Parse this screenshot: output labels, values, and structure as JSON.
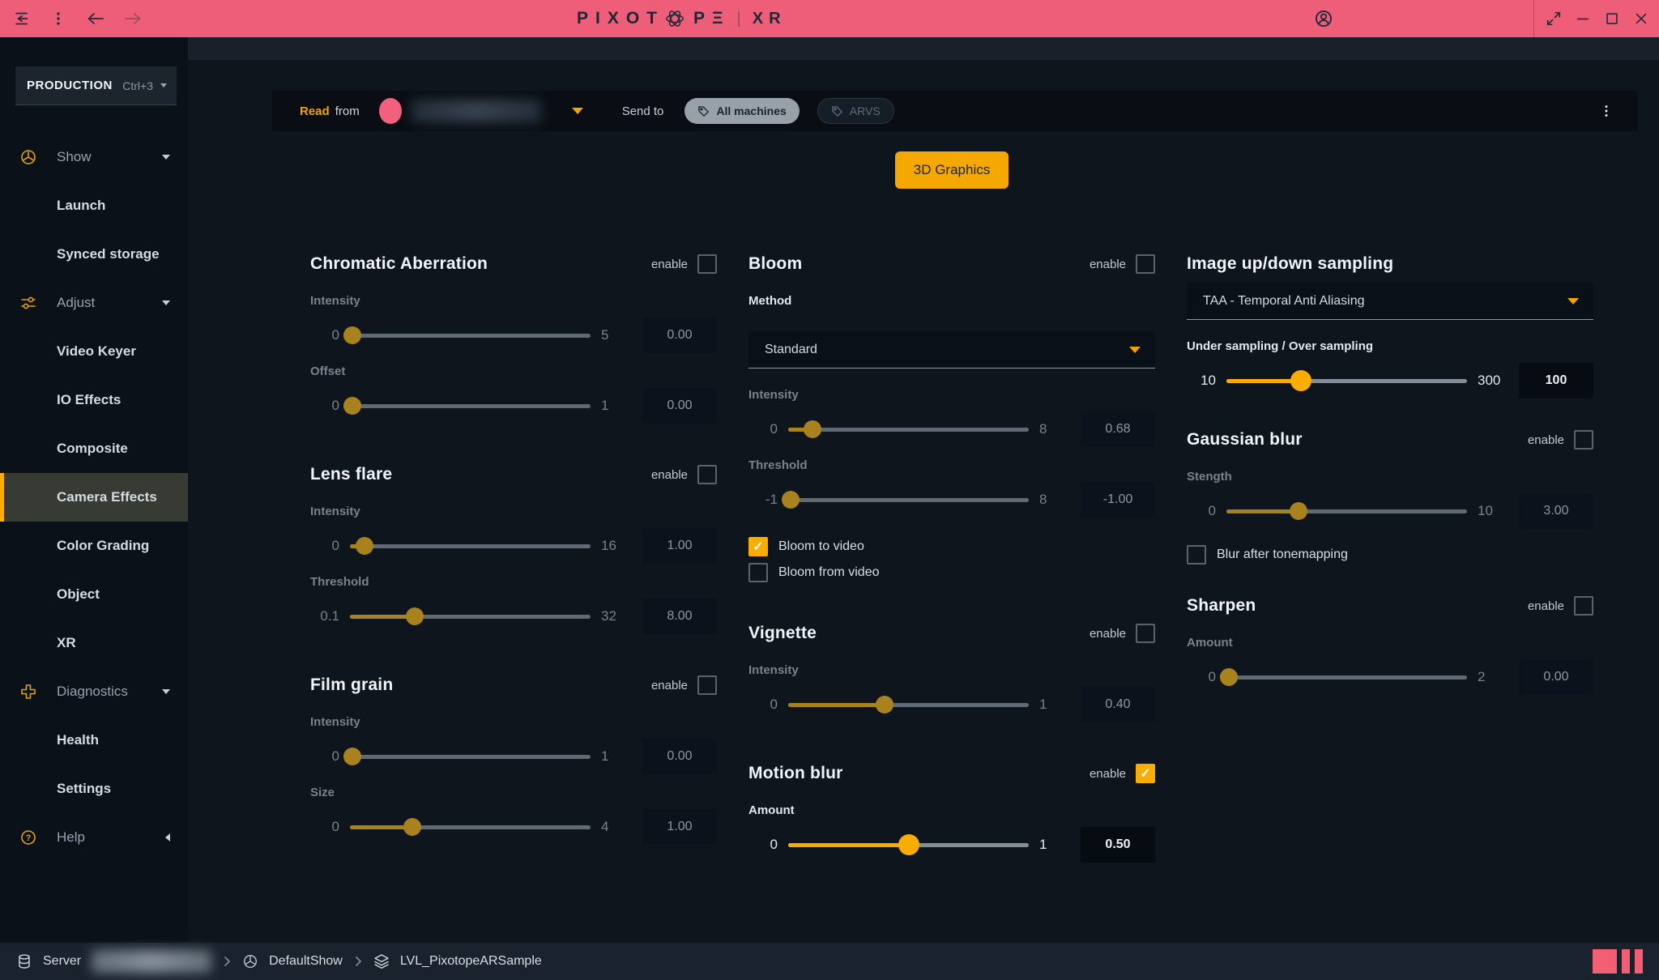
{
  "titlebar": {
    "logo_left": "PIXOT",
    "logo_right": "PΞ",
    "divider": "|",
    "product": "XR"
  },
  "sidebar": {
    "workspace_label": "PRODUCTION",
    "workspace_shortcut": "Ctrl+3",
    "items": [
      {
        "label": "Show",
        "kind": "group",
        "icon": "show-icon"
      },
      {
        "label": "Launch",
        "kind": "sub"
      },
      {
        "label": "Synced storage",
        "kind": "sub"
      },
      {
        "label": "Adjust",
        "kind": "group",
        "icon": "adjust-icon"
      },
      {
        "label": "Video Keyer",
        "kind": "sub"
      },
      {
        "label": "IO Effects",
        "kind": "sub"
      },
      {
        "label": "Composite",
        "kind": "sub"
      },
      {
        "label": "Camera Effects",
        "kind": "sub",
        "active": true
      },
      {
        "label": "Color Grading",
        "kind": "sub"
      },
      {
        "label": "Object",
        "kind": "sub"
      },
      {
        "label": "XR",
        "kind": "sub"
      },
      {
        "label": "Diagnostics",
        "kind": "group",
        "icon": "diagnostics-icon"
      },
      {
        "label": "Health",
        "kind": "sub"
      },
      {
        "label": "Settings",
        "kind": "sub"
      },
      {
        "label": "Help",
        "kind": "group",
        "icon": "help-icon",
        "collapsed": true
      }
    ]
  },
  "readbar": {
    "read": "Read",
    "from": "from",
    "send_to": "Send to",
    "machines": [
      {
        "label": "All machines",
        "selected": true,
        "icon": "tag-icon"
      },
      {
        "label": "ARVS",
        "selected": false,
        "icon": "tag-icon"
      }
    ]
  },
  "graphics_button": "3D Graphics",
  "labels": {
    "enable": "enable"
  },
  "colors": {
    "accent_pink": "#ef5e78",
    "accent_yellow": "#f8ad00",
    "accent_yellow_dim": "#a7821d"
  },
  "columns": [
    {
      "sections": [
        {
          "title": "Chromatic Aberration",
          "enable": false,
          "controls": [
            {
              "type": "slider",
              "label": "Intensity",
              "min": "0",
              "max": "5",
              "value": "0.00",
              "percent": 1,
              "on": false
            },
            {
              "type": "slider",
              "label": "Offset",
              "min": "0",
              "max": "1",
              "value": "0.00",
              "percent": 1,
              "on": false
            }
          ]
        },
        {
          "title": "Lens flare",
          "enable": false,
          "controls": [
            {
              "type": "slider",
              "label": "Intensity",
              "min": "0",
              "max": "16",
              "value": "1.00",
              "percent": 6,
              "on": false
            },
            {
              "type": "slider",
              "label": "Threshold",
              "min": "0.1",
              "max": "32",
              "value": "8.00",
              "percent": 27,
              "on": false
            }
          ]
        },
        {
          "title": "Film grain",
          "enable": false,
          "controls": [
            {
              "type": "slider",
              "label": "Intensity",
              "min": "0",
              "max": "1",
              "value": "0.00",
              "percent": 1,
              "on": false
            },
            {
              "type": "slider",
              "label": "Size",
              "min": "0",
              "max": "4",
              "value": "1.00",
              "percent": 26,
              "on": false
            }
          ]
        }
      ]
    },
    {
      "sections": [
        {
          "title": "Bloom",
          "enable": false,
          "controls": [
            {
              "type": "dropdown",
              "label": "Method",
              "value": "Standard"
            },
            {
              "type": "slider",
              "label": "Intensity",
              "min": "0",
              "max": "8",
              "value": "0.68",
              "percent": 10,
              "on": false
            },
            {
              "type": "slider",
              "label": "Threshold",
              "min": "-1",
              "max": "8",
              "value": "-1.00",
              "percent": 1,
              "on": false
            },
            {
              "type": "checkbox",
              "label": "Bloom to video",
              "checked": true
            },
            {
              "type": "checkbox",
              "label": "Bloom from video",
              "checked": false
            }
          ]
        },
        {
          "title": "Vignette",
          "enable": false,
          "controls": [
            {
              "type": "slider",
              "label": "Intensity",
              "min": "0",
              "max": "1",
              "value": "0.40",
              "percent": 40,
              "on": false
            }
          ]
        },
        {
          "title": "Motion blur",
          "enable": true,
          "controls": [
            {
              "type": "slider",
              "label": "Amount",
              "min": "0",
              "max": "1",
              "value": "0.50",
              "percent": 50,
              "on": true
            }
          ]
        }
      ]
    },
    {
      "sections": [
        {
          "title": "Image up/down sampling",
          "enable": null,
          "controls": [
            {
              "type": "dropdown",
              "label": null,
              "value": "TAA - Temporal Anti Aliasing"
            },
            {
              "type": "slider",
              "label": "Under sampling / Over sampling",
              "min": "10",
              "max": "300",
              "value": "100",
              "percent": 31,
              "on": true
            }
          ]
        },
        {
          "title": "Gaussian blur",
          "enable": false,
          "controls": [
            {
              "type": "slider",
              "label": "Stength",
              "min": "0",
              "max": "10",
              "value": "3.00",
              "percent": 30,
              "on": false
            },
            {
              "type": "checkbox",
              "label": "Blur after tonemapping",
              "checked": false
            }
          ]
        },
        {
          "title": "Sharpen",
          "enable": false,
          "controls": [
            {
              "type": "slider",
              "label": "Amount",
              "min": "0",
              "max": "2",
              "value": "0.00",
              "percent": 1,
              "on": false
            }
          ]
        }
      ]
    }
  ],
  "statusbar": {
    "server_label": "Server",
    "show_name": "DefaultShow",
    "level_name": "LVL_PixotopeARSample"
  }
}
